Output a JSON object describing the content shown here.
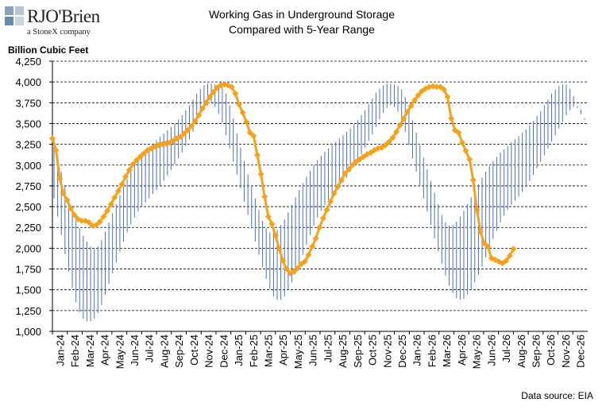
{
  "logo": {
    "name": "RJO'Brien",
    "subtitle": "a StoneX company",
    "colors": [
      "#8aa3bd",
      "#b7c6d6",
      "#6a8aa9",
      "#c9d4e0"
    ]
  },
  "title_line1": "Working Gas in Underground Storage",
  "title_line2": "Compared with 5-Year Range",
  "source": "Data source: EIA",
  "chart_data": {
    "type": "line",
    "title": "Working Gas in Underground Storage Compared with 5-Year Range",
    "ylabel": "Billion Cubic Feet",
    "ylim": [
      1000,
      4250
    ],
    "yticks": [
      1000,
      1250,
      1500,
      1750,
      2000,
      2250,
      2500,
      2750,
      3000,
      3250,
      3500,
      3750,
      4000,
      4250
    ],
    "ytick_labels": [
      "1,000",
      "1,250",
      "1,500",
      "1,750",
      "2,000",
      "2,250",
      "2,500",
      "2,750",
      "3,000",
      "3,250",
      "3,500",
      "3,750",
      "4,000",
      "4,250"
    ],
    "xlabels": [
      "Jan-24",
      "Feb-24",
      "Mar-24",
      "Apr-24",
      "May-24",
      "Jun-24",
      "Jul-24",
      "Aug-24",
      "Sep-24",
      "Oct-24",
      "Nov-24",
      "Dec-24",
      "Jan-25",
      "Feb-25",
      "Mar-25",
      "Apr-25",
      "May-25",
      "Jun-25",
      "Jul-25",
      "Aug-25",
      "Sep-25",
      "Oct-25",
      "Nov-25",
      "Dec-25",
      "Jan-26",
      "Feb-26",
      "Mar-26",
      "Apr-26",
      "May-26",
      "Jun-26",
      "Jul-26",
      "Aug-26",
      "Sep-26",
      "Oct-26",
      "Nov-26",
      "Dec-26"
    ],
    "grid": "horizontal dashed",
    "colors": {
      "range": "#4a72b8",
      "storage": "#f5a11c",
      "grid": "#000000"
    },
    "series": [
      {
        "kind": "weekly storage",
        "color": "#f5a11c",
        "values": [
          3320,
          3180,
          2840,
          2660,
          2580,
          2480,
          2400,
          2350,
          2330,
          2330,
          2310,
          2270,
          2280,
          2320,
          2380,
          2450,
          2530,
          2610,
          2690,
          2770,
          2860,
          2940,
          3010,
          3060,
          3100,
          3140,
          3180,
          3200,
          3220,
          3240,
          3250,
          3260,
          3270,
          3290,
          3320,
          3340,
          3380,
          3420,
          3470,
          3530,
          3600,
          3680,
          3750,
          3820,
          3880,
          3930,
          3960,
          3970,
          3960,
          3940,
          3860,
          3730,
          3630,
          3520,
          3390,
          3350,
          3120,
          2890,
          2620,
          2380,
          2290,
          2150,
          1990,
          1850,
          1750,
          1700,
          1720,
          1760,
          1810,
          1840,
          1920,
          2020,
          2120,
          2250,
          2360,
          2460,
          2560,
          2660,
          2740,
          2820,
          2900,
          2950,
          3000,
          3040,
          3070,
          3100,
          3130,
          3150,
          3180,
          3200,
          3210,
          3240,
          3280,
          3330,
          3400,
          3480,
          3560,
          3640,
          3710,
          3780,
          3840,
          3890,
          3920,
          3940,
          3950,
          3940,
          3940,
          3910,
          3820,
          3560,
          3420,
          3390,
          3270,
          3170,
          3070,
          2820,
          2460,
          2200,
          2060,
          2020,
          1880,
          1860,
          1840,
          1820,
          1850,
          1910,
          1990
        ]
      },
      {
        "kind": "5-year maximum",
        "values": [
          3320,
          3120,
          2920,
          2760,
          2600,
          2450,
          2330,
          2240,
          2150,
          2080,
          2020,
          2000,
          2020,
          2100,
          2200,
          2310,
          2420,
          2530,
          2640,
          2740,
          2830,
          2920,
          3000,
          3070,
          3130,
          3180,
          3220,
          3260,
          3300,
          3340,
          3380,
          3420,
          3460,
          3500,
          3550,
          3600,
          3660,
          3720,
          3790,
          3860,
          3920,
          3960,
          3980,
          3980,
          3970,
          3960,
          3940,
          3860,
          3720,
          3560,
          3380,
          3210,
          3050,
          2890,
          2750,
          2600,
          2460,
          2330,
          2240,
          2190,
          2180,
          2220,
          2280,
          2350,
          2430,
          2520,
          2610,
          2700,
          2780,
          2860,
          2930,
          3000,
          3060,
          3110,
          3160,
          3200,
          3240,
          3280,
          3320,
          3360,
          3400,
          3440,
          3490,
          3540,
          3600,
          3660,
          3730,
          3800,
          3870,
          3920,
          3960,
          3980,
          3980,
          3970,
          3950,
          3910,
          3820,
          3680,
          3540,
          3390,
          3240,
          3090,
          2950,
          2810,
          2670,
          2530,
          2400,
          2310,
          2270,
          2280,
          2320,
          2380,
          2450,
          2530,
          2610,
          2690,
          2770,
          2850,
          2920,
          2990,
          3050,
          3100,
          3150,
          3190,
          3230,
          3270,
          3310,
          3350,
          3390,
          3430,
          3480,
          3530,
          3590,
          3650,
          3720,
          3790,
          3860,
          3910,
          3950,
          3970,
          3970,
          3920,
          3830,
          3690,
          3610,
          3540
        ]
      },
      {
        "kind": "5-year minimum",
        "values": [
          2600,
          2380,
          2160,
          1930,
          1720,
          1520,
          1350,
          1230,
          1150,
          1120,
          1120,
          1150,
          1220,
          1320,
          1440,
          1570,
          1700,
          1830,
          1960,
          2080,
          2190,
          2290,
          2370,
          2440,
          2500,
          2550,
          2600,
          2650,
          2700,
          2750,
          2810,
          2870,
          2940,
          3010,
          3080,
          3150,
          3230,
          3310,
          3400,
          3490,
          3580,
          3660,
          3720,
          3740,
          3700,
          3620,
          3510,
          3360,
          3200,
          3040,
          2880,
          2720,
          2560,
          2400,
          2240,
          2080,
          1920,
          1770,
          1630,
          1510,
          1420,
          1380,
          1380,
          1420,
          1500,
          1590,
          1690,
          1800,
          1920,
          2040,
          2160,
          2270,
          2370,
          2450,
          2520,
          2580,
          2630,
          2680,
          2730,
          2790,
          2850,
          2920,
          2990,
          3060,
          3130,
          3210,
          3290,
          3370,
          3460,
          3550,
          3630,
          3690,
          3720,
          3700,
          3640,
          3540,
          3400,
          3240,
          3080,
          2920,
          2760,
          2600,
          2440,
          2280,
          2120,
          1960,
          1810,
          1670,
          1550,
          1460,
          1400,
          1380,
          1390,
          1440,
          1510,
          1590,
          1680,
          1780,
          1890,
          2000,
          2110,
          2210,
          2310,
          2390,
          2460,
          2520,
          2570,
          2620,
          2680,
          2740,
          2810,
          2880,
          2960,
          3040,
          3120,
          3200,
          3280,
          3360,
          3440,
          3520,
          3600,
          3660,
          3700,
          3710,
          3670,
          3560,
          3440,
          3270
        ]
      }
    ]
  }
}
